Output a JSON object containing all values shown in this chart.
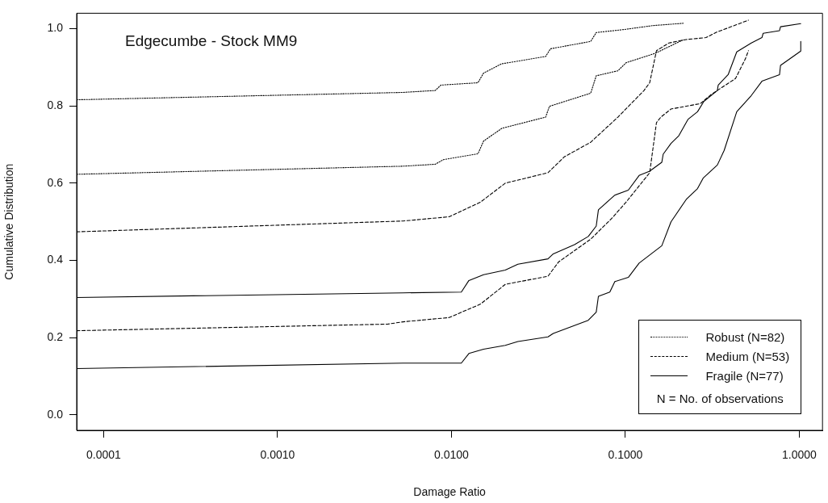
{
  "chart_data": {
    "type": "line",
    "title": "Edgecumbe - Stock MM9",
    "xlabel": "Damage Ratio",
    "ylabel": "Cumulative Distribution",
    "log": "x",
    "xlim": [
      7e-05,
      1.36
    ],
    "ylim": [
      -0.04,
      1.04
    ],
    "xticks": [
      {
        "value": 0.0001,
        "label": "0.0001"
      },
      {
        "value": 0.001,
        "label": "0.0010"
      },
      {
        "value": 0.01,
        "label": "0.0100"
      },
      {
        "value": 0.1,
        "label": "0.1000"
      },
      {
        "value": 1,
        "label": "1.0000"
      }
    ],
    "yticks": [
      {
        "value": 0,
        "label": "0.0"
      },
      {
        "value": 0.2,
        "label": "0.2"
      },
      {
        "value": 0.4,
        "label": "0.4"
      },
      {
        "value": 0.6,
        "label": "0.6"
      },
      {
        "value": 0.8,
        "label": "0.8"
      },
      {
        "value": 1,
        "label": "1.0"
      }
    ],
    "grid": false,
    "legend": "bottom right",
    "marker": "none",
    "annotations": [
      "N = No. of observations"
    ],
    "series": [
      {
        "name": "Robust (N=82)",
        "color": "#000000",
        "line_style": "dotted",
        "x": [
          7e-05,
          0.00527,
          0.00807,
          0.0087,
          0.0142,
          0.0153,
          0.0194,
          0.0348,
          0.0371,
          0.0632,
          0.068,
          0.0989,
          0.1435,
          0.215
        ],
        "values": [
          0.816,
          0.835,
          0.84,
          0.854,
          0.86,
          0.885,
          0.909,
          0.928,
          0.948,
          0.967,
          0.99,
          0.998,
          1.008,
          1.014
        ]
      },
      {
        "color": "#000000",
        "line_style": "dotted",
        "x": [
          7e-05,
          0.00527,
          0.00807,
          0.009,
          0.0142,
          0.0153,
          0.0195,
          0.0348,
          0.0366,
          0.0632,
          0.068,
          0.0906,
          0.101,
          0.148,
          0.217
        ],
        "values": [
          0.623,
          0.644,
          0.649,
          0.661,
          0.676,
          0.709,
          0.742,
          0.771,
          0.799,
          0.833,
          0.878,
          0.891,
          0.912,
          0.936,
          0.972
        ]
      },
      {
        "name": "Medium (N=53)",
        "color": "#000000",
        "line_style": "dashed",
        "x": [
          7e-05,
          0.00527,
          0.0097,
          0.0147,
          0.0204,
          0.0359,
          0.0445,
          0.0632,
          0.0906,
          0.128,
          0.138,
          0.151,
          0.178,
          0.224,
          0.291,
          0.335,
          0.51
        ],
        "values": [
          0.474,
          0.502,
          0.513,
          0.551,
          0.6,
          0.627,
          0.668,
          0.706,
          0.771,
          0.84,
          0.86,
          0.943,
          0.963,
          0.972,
          0.977,
          0.991,
          1.022
        ]
      },
      {
        "color": "#000000",
        "line_style": "dashed",
        "x": [
          7e-05,
          0.0043,
          0.00527,
          0.0097,
          0.0147,
          0.0204,
          0.0359,
          0.0413,
          0.0632,
          0.084,
          0.101,
          0.138,
          0.151,
          0.16,
          0.183,
          0.27,
          0.31,
          0.43,
          0.49,
          0.51
        ],
        "values": [
          0.218,
          0.235,
          0.241,
          0.252,
          0.287,
          0.338,
          0.359,
          0.396,
          0.455,
          0.51,
          0.551,
          0.627,
          0.757,
          0.771,
          0.792,
          0.806,
          0.829,
          0.871,
          0.922,
          0.943
        ]
      },
      {
        "name": "Fragile (N=77)",
        "color": "#000000",
        "line_style": "solid",
        "x": [
          7e-05,
          0.00527,
          0.0114,
          0.0126,
          0.0153,
          0.0204,
          0.0241,
          0.0359,
          0.0385,
          0.051,
          0.0612,
          0.068,
          0.07,
          0.087,
          0.104,
          0.12,
          0.138,
          0.162,
          0.165,
          0.183,
          0.203,
          0.229,
          0.26,
          0.283,
          0.338,
          0.342,
          0.39,
          0.437,
          0.53,
          0.61,
          0.62,
          0.77,
          0.78,
          1.02
        ],
        "values": [
          0.304,
          0.316,
          0.318,
          0.348,
          0.363,
          0.375,
          0.39,
          0.404,
          0.417,
          0.441,
          0.462,
          0.489,
          0.531,
          0.569,
          0.582,
          0.62,
          0.631,
          0.654,
          0.675,
          0.703,
          0.723,
          0.765,
          0.785,
          0.812,
          0.84,
          0.854,
          0.881,
          0.94,
          0.963,
          0.977,
          0.988,
          0.995,
          1.005,
          1.013
        ]
      },
      {
        "color": "#000000",
        "line_style": "solid",
        "x": [
          7e-05,
          0.00527,
          0.0114,
          0.0126,
          0.0153,
          0.0204,
          0.0241,
          0.0359,
          0.0385,
          0.0612,
          0.068,
          0.07,
          0.0814,
          0.087,
          0.104,
          0.12,
          0.162,
          0.183,
          0.224,
          0.26,
          0.28,
          0.338,
          0.37,
          0.437,
          0.53,
          0.61,
          0.77,
          0.78,
          1.02,
          1.02
        ],
        "values": [
          0.12,
          0.134,
          0.134,
          0.159,
          0.17,
          0.18,
          0.19,
          0.202,
          0.211,
          0.245,
          0.266,
          0.307,
          0.318,
          0.345,
          0.356,
          0.393,
          0.438,
          0.5,
          0.558,
          0.586,
          0.613,
          0.647,
          0.685,
          0.785,
          0.827,
          0.864,
          0.881,
          0.905,
          0.942,
          0.967
        ]
      }
    ]
  }
}
